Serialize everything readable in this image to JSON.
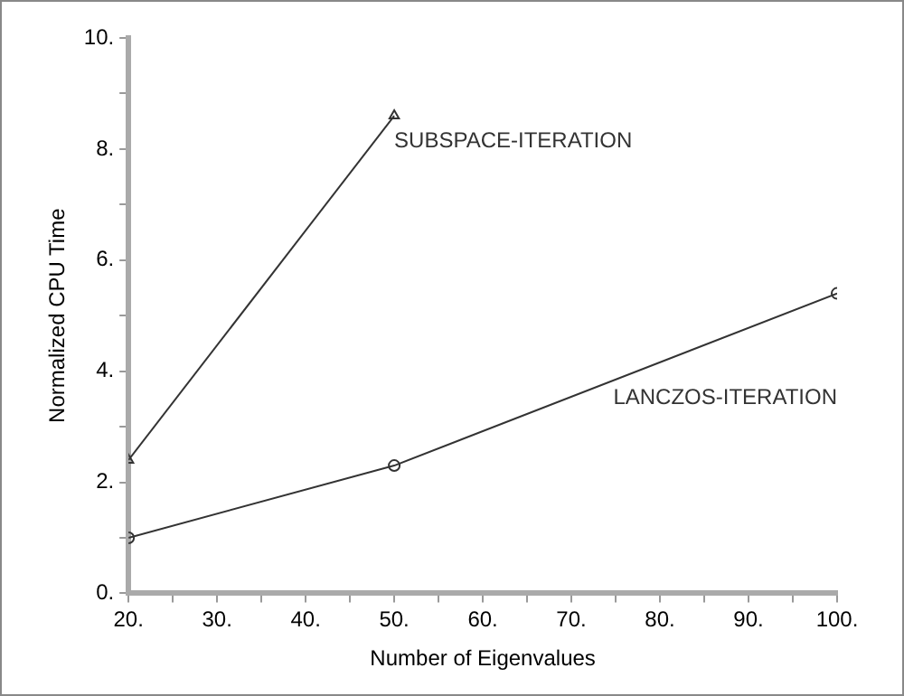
{
  "chart_data": {
    "type": "line",
    "xlabel": "Number of Eigenvalues",
    "ylabel": "Normalized CPU Time",
    "xlim": [
      20,
      100
    ],
    "ylim": [
      0,
      10
    ],
    "xticks": [
      {
        "value": 20,
        "label": "20."
      },
      {
        "value": 25,
        "label": null
      },
      {
        "value": 30,
        "label": "30."
      },
      {
        "value": 35,
        "label": null
      },
      {
        "value": 40,
        "label": "40."
      },
      {
        "value": 45,
        "label": null
      },
      {
        "value": 50,
        "label": "50."
      },
      {
        "value": 55,
        "label": null
      },
      {
        "value": 60,
        "label": "60."
      },
      {
        "value": 65,
        "label": null
      },
      {
        "value": 70,
        "label": "70."
      },
      {
        "value": 75,
        "label": null
      },
      {
        "value": 80,
        "label": "80."
      },
      {
        "value": 85,
        "label": null
      },
      {
        "value": 90,
        "label": "90."
      },
      {
        "value": 95,
        "label": null
      },
      {
        "value": 100,
        "label": "100."
      }
    ],
    "yticks": [
      {
        "value": 0,
        "label": "0."
      },
      {
        "value": 1,
        "label": null
      },
      {
        "value": 2,
        "label": "2."
      },
      {
        "value": 3,
        "label": null
      },
      {
        "value": 4,
        "label": "4."
      },
      {
        "value": 5,
        "label": null
      },
      {
        "value": 6,
        "label": "6."
      },
      {
        "value": 7,
        "label": null
      },
      {
        "value": 8,
        "label": "8."
      },
      {
        "value": 9,
        "label": null
      },
      {
        "value": 10,
        "label": "10."
      }
    ],
    "grid": false,
    "legend": false,
    "series": [
      {
        "name": "SUBSPACE-ITERATION",
        "color": "#333333",
        "marker": "triangle",
        "x": [
          20,
          50
        ],
        "values": [
          2.4,
          8.6
        ]
      },
      {
        "name": "LANCZOS-ITERATION",
        "color": "#333333",
        "marker": "circle",
        "x": [
          20,
          50,
          100
        ],
        "values": [
          1.0,
          2.3,
          5.4
        ]
      }
    ]
  }
}
